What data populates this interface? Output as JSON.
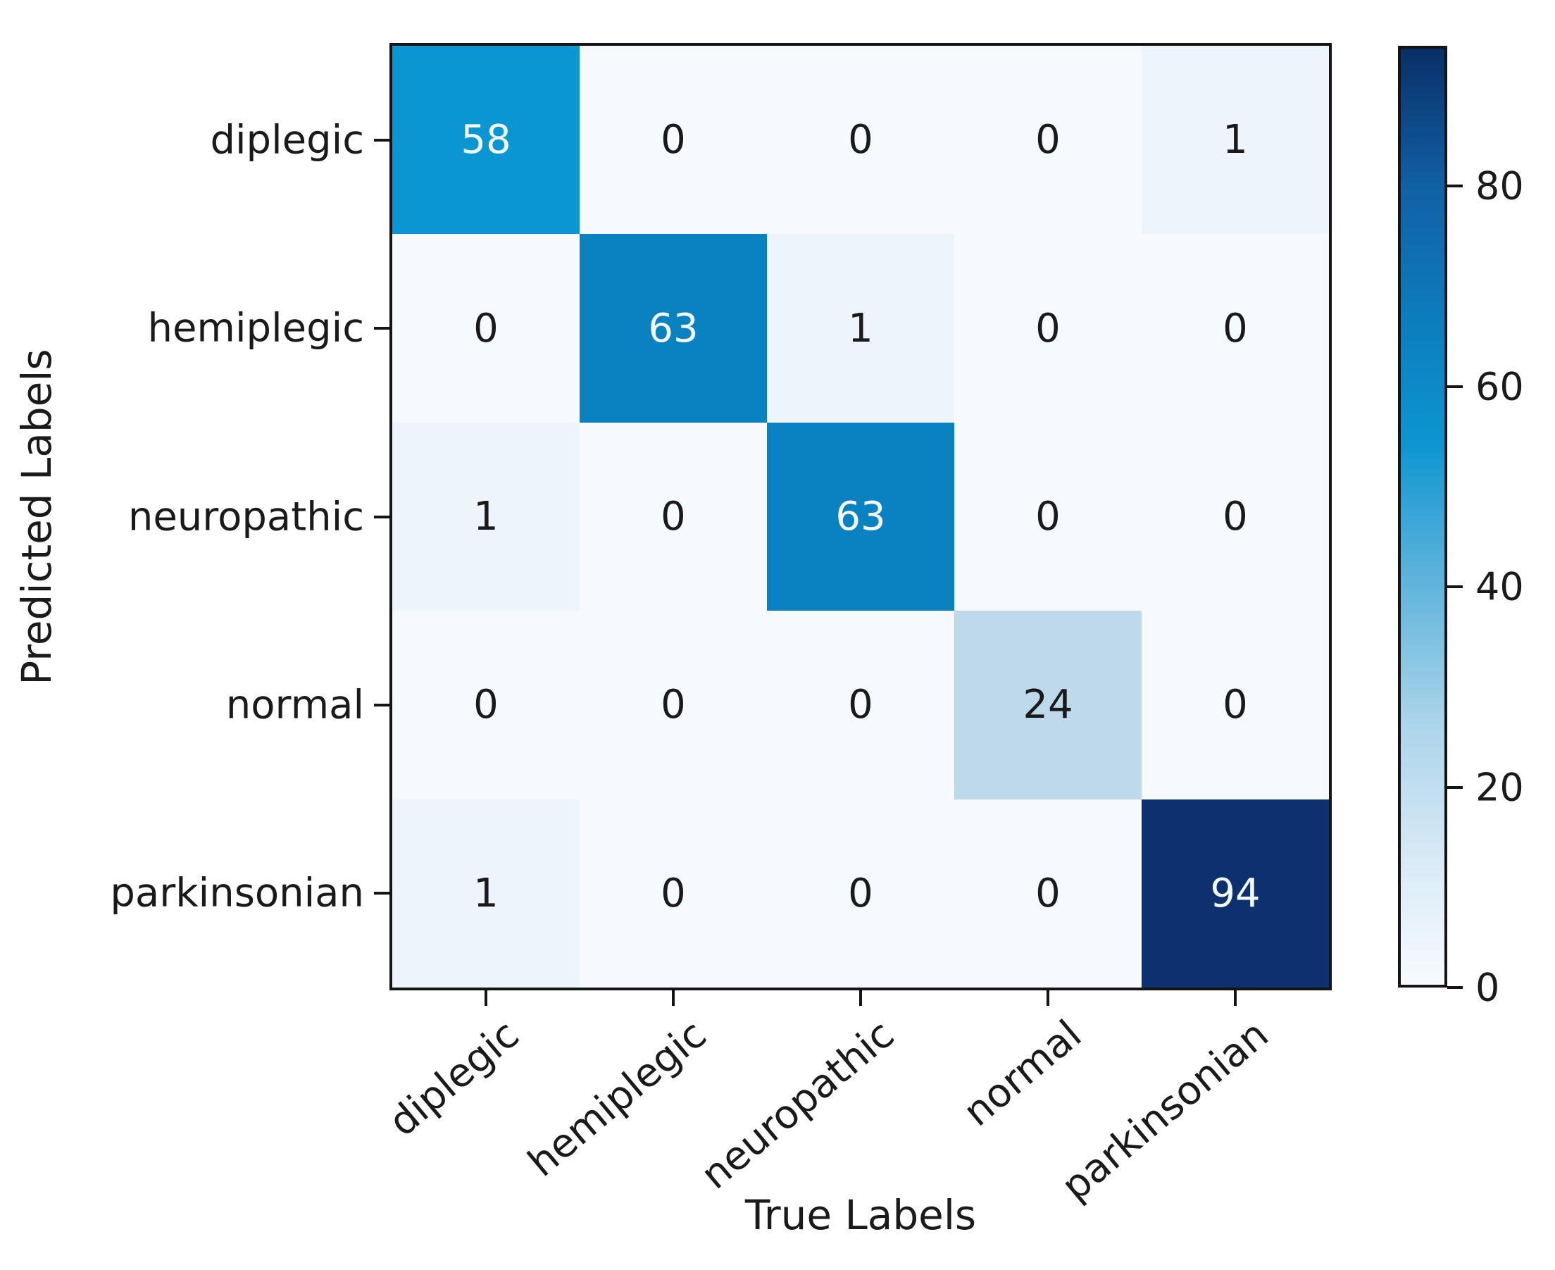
{
  "chart_data": {
    "type": "heatmap",
    "title": "",
    "xlabel": "True Labels",
    "ylabel": "Predicted Labels",
    "x_categories": [
      "diplegic",
      "hemiplegic",
      "neuropathic",
      "normal",
      "parkinsonian"
    ],
    "y_categories": [
      "diplegic",
      "hemiplegic",
      "neuropathic",
      "normal",
      "parkinsonian"
    ],
    "matrix": [
      [
        58,
        0,
        0,
        0,
        1
      ],
      [
        0,
        63,
        1,
        0,
        0
      ],
      [
        1,
        0,
        63,
        0,
        0
      ],
      [
        0,
        0,
        0,
        24,
        0
      ],
      [
        1,
        0,
        0,
        0,
        94
      ]
    ],
    "grid": false,
    "x_tick_rotation_deg": 40,
    "colormap": "Blues",
    "colorbar": {
      "vmin": 0,
      "vmax": 94,
      "ticks": [
        80,
        60,
        40,
        20,
        0
      ],
      "gradient_stops": [
        {
          "pos": 0.0,
          "color": "#092f66"
        },
        {
          "pos": 0.15,
          "color": "#1161a6"
        },
        {
          "pos": 0.3,
          "color": "#0c7fbe"
        },
        {
          "pos": 0.42,
          "color": "#0d95d0"
        },
        {
          "pos": 0.57,
          "color": "#5fb4dc"
        },
        {
          "pos": 0.72,
          "color": "#abd4ea"
        },
        {
          "pos": 0.87,
          "color": "#d9eaf6"
        },
        {
          "pos": 1.0,
          "color": "#f7fbff"
        }
      ]
    },
    "value_colors": {
      "0": "#f6fafe",
      "1": "#edf4fb",
      "24": "#bed8ec",
      "58": "#0a96d2",
      "63": "#0a82c1",
      "94": "#0d316e"
    },
    "cell_text_light": "#f4f9fd",
    "cell_text_dark": "#1a1a1a",
    "white_text_threshold": 40
  }
}
